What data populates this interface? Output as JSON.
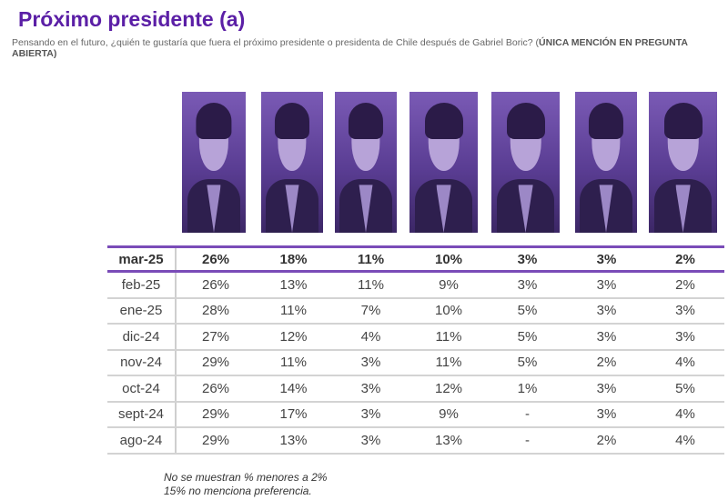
{
  "title": "Próximo presidente (a)",
  "subtitle": {
    "text": "Pensando en el futuro, ¿quién te gustaría que fuera el próximo presidente o presidenta de Chile después de Gabriel Boric? (",
    "bold": "ÚNICA MENCIÓN EN PREGUNTA ABIERTA)"
  },
  "photo_tint": "#6a4ca6",
  "accent_color": "#5b1fa6",
  "table": {
    "rows": [
      {
        "label": "mar-25",
        "values": [
          "26%",
          "18%",
          "11%",
          "10%",
          "3%",
          "3%",
          "2%"
        ],
        "highlight": true
      },
      {
        "label": "feb-25",
        "values": [
          "26%",
          "13%",
          "11%",
          "9%",
          "3%",
          "3%",
          "2%"
        ]
      },
      {
        "label": "ene-25",
        "values": [
          "28%",
          "11%",
          "7%",
          "10%",
          "5%",
          "3%",
          "3%"
        ]
      },
      {
        "label": "dic-24",
        "values": [
          "27%",
          "12%",
          "4%",
          "11%",
          "5%",
          "3%",
          "3%"
        ]
      },
      {
        "label": "nov-24",
        "values": [
          "29%",
          "11%",
          "3%",
          "11%",
          "5%",
          "2%",
          "4%"
        ]
      },
      {
        "label": "oct-24",
        "values": [
          "26%",
          "14%",
          "3%",
          "12%",
          "1%",
          "3%",
          "5%"
        ]
      },
      {
        "label": "sept-24",
        "values": [
          "29%",
          "17%",
          "3%",
          "9%",
          "-",
          "3%",
          "4%"
        ]
      },
      {
        "label": "ago-24",
        "values": [
          "29%",
          "13%",
          "3%",
          "13%",
          "-",
          "2%",
          "4%"
        ]
      }
    ]
  },
  "notes": [
    "No se muestran % menores a 2%",
    "15% no menciona preferencia."
  ]
}
